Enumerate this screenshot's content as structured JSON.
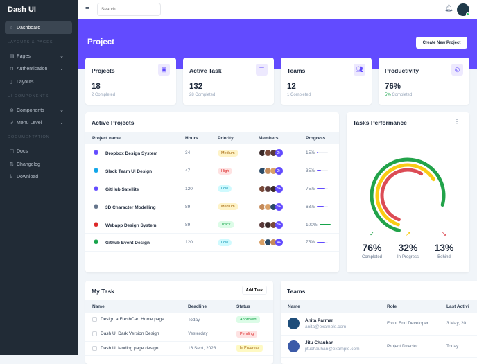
{
  "brand": "Dash UI",
  "sidebar": {
    "dashboard": "Dashboard",
    "sections": [
      "LAYOUTS & PAGES",
      "UI COMPONENTS",
      "DOCUMENTATION"
    ],
    "items": [
      {
        "label": "Pages",
        "icon": "pages-icon"
      },
      {
        "label": "Authentication",
        "icon": "lock-icon"
      },
      {
        "label": "Layouts",
        "icon": "layout-icon"
      },
      {
        "label": "Components",
        "icon": "components-icon"
      },
      {
        "label": "Menu Level",
        "icon": "menu-level-icon"
      },
      {
        "label": "Docs",
        "icon": "clipboard-icon"
      },
      {
        "label": "Changelog",
        "icon": "changelog-icon"
      },
      {
        "label": "Download",
        "icon": "download-icon"
      }
    ]
  },
  "topbar": {
    "search_placeholder": "Search"
  },
  "page": {
    "title": "Project",
    "create_button": "Create New Project"
  },
  "stats": [
    {
      "title": "Projects",
      "value": "18",
      "sub_count": "2",
      "sub": "Completed",
      "icon": "briefcase-icon"
    },
    {
      "title": "Active Task",
      "value": "132",
      "sub_count": "28",
      "sub": "Completed",
      "icon": "list-icon"
    },
    {
      "title": "Teams",
      "value": "12",
      "sub_count": "1",
      "sub": "Completed",
      "icon": "people-icon"
    },
    {
      "title": "Productivity",
      "value": "76%",
      "sub_count": "5%",
      "sub": "Completed",
      "icon": "target-icon"
    }
  ],
  "active_projects": {
    "title": "Active Projects",
    "headers": [
      "Project name",
      "Hours",
      "Priority",
      "Members",
      "Progress"
    ],
    "rows": [
      {
        "name": "Dropbox Design System",
        "hours": "34",
        "priority": "Medium",
        "members_more": "2+",
        "progress": 15,
        "progress_label": "15%",
        "icon_color": "#624bff"
      },
      {
        "name": "Slack Team UI Design",
        "hours": "47",
        "priority": "High",
        "members_more": "2+",
        "progress": 35,
        "progress_label": "35%",
        "icon_color": "#0ea5e9"
      },
      {
        "name": "GitHub Satellite",
        "hours": "120",
        "priority": "Low",
        "members_more": "5+",
        "progress": 75,
        "progress_label": "75%",
        "icon_color": "#624bff"
      },
      {
        "name": "3D Character Modelling",
        "hours": "89",
        "priority": "Medium",
        "members_more": "5+",
        "progress": 63,
        "progress_label": "63%",
        "icon_color": "#64748b"
      },
      {
        "name": "Webapp Design System",
        "hours": "89",
        "priority": "Track",
        "members_more": "5+",
        "progress": 100,
        "progress_label": "100%",
        "icon_color": "#dc2626"
      },
      {
        "name": "Github Event Design",
        "hours": "120",
        "priority": "Low",
        "members_more": "4+",
        "progress": 75,
        "progress_label": "75%",
        "icon_color": "#16a34a"
      }
    ]
  },
  "tasks_performance": {
    "title": "Tasks Performance",
    "items": [
      {
        "value": "76%",
        "label": "Completed",
        "color": "#22a34a",
        "icon": "check-circle-icon"
      },
      {
        "value": "32%",
        "label": "In-Progress",
        "color": "#facc15",
        "icon": "trending-up-icon"
      },
      {
        "value": "13%",
        "label": "Behind",
        "color": "#dc4c55",
        "icon": "trending-down-icon"
      }
    ]
  },
  "my_task": {
    "title": "My Task",
    "add_button": "Add Task",
    "headers": [
      "Name",
      "Deadline",
      "Status"
    ],
    "rows": [
      {
        "name": "Design a FreshCart Home page",
        "deadline": "Today",
        "status": "Approved"
      },
      {
        "name": "Dash UI Dark Version Design",
        "deadline": "Yesterday",
        "status": "Pending"
      },
      {
        "name": "Dash UI landing page design",
        "deadline": "16 Sept, 2023",
        "status": "In Progress"
      }
    ]
  },
  "teams": {
    "title": "Teams",
    "headers": [
      "Name",
      "Role",
      "Last Activi"
    ],
    "rows": [
      {
        "name": "Anita Parmar",
        "email": "anita@example.com",
        "role": "Front End Developer",
        "last": "3 May, 20"
      },
      {
        "name": "Jitu Chauhan",
        "email": "jituchauhan@example.com",
        "role": "Project Director",
        "last": "Today"
      }
    ]
  }
}
